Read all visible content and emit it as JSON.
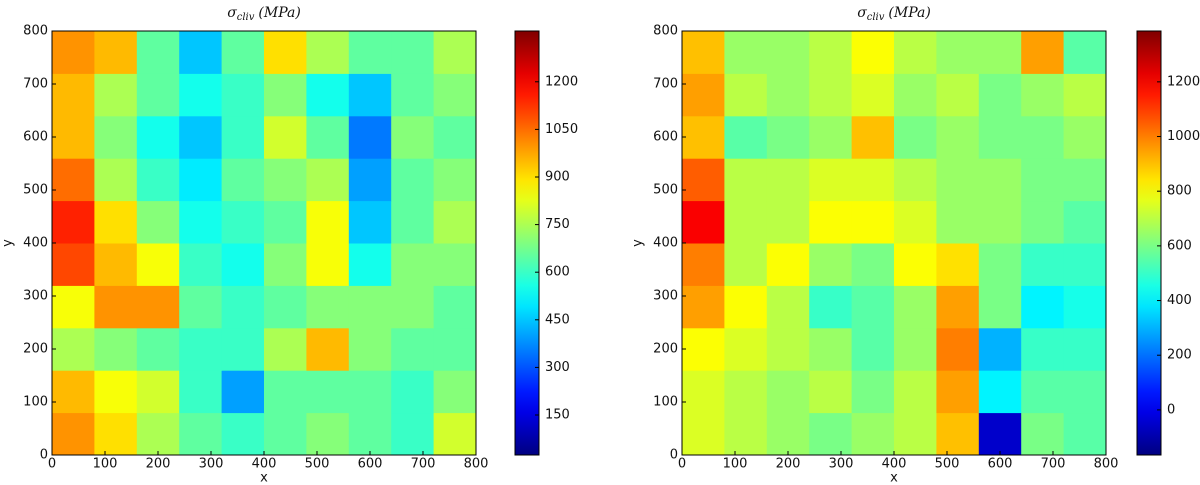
{
  "chart_data": [
    {
      "type": "heatmap",
      "title": "σ",
      "title_subscript": "cliv",
      "title_unit": "(MPa)",
      "xlabel": "x",
      "ylabel": "y",
      "colormap": "jet",
      "x": [
        40,
        120,
        200,
        280,
        360,
        440,
        520,
        600,
        680,
        760
      ],
      "y": [
        40,
        120,
        200,
        280,
        360,
        440,
        520,
        600,
        680,
        760
      ],
      "z": [
        [
          1000,
          900,
          750,
          650,
          600,
          650,
          700,
          650,
          600,
          800
        ],
        [
          950,
          850,
          800,
          600,
          400,
          650,
          650,
          650,
          600,
          700
        ],
        [
          750,
          700,
          650,
          600,
          600,
          750,
          950,
          700,
          650,
          650
        ],
        [
          850,
          1000,
          1000,
          650,
          600,
          650,
          700,
          700,
          700,
          650
        ],
        [
          1100,
          950,
          850,
          600,
          550,
          700,
          850,
          550,
          700,
          700
        ],
        [
          1150,
          900,
          700,
          550,
          600,
          650,
          850,
          450,
          650,
          750
        ],
        [
          1050,
          750,
          600,
          500,
          650,
          700,
          750,
          400,
          650,
          700
        ],
        [
          950,
          700,
          550,
          450,
          600,
          800,
          650,
          350,
          700,
          650
        ],
        [
          950,
          750,
          650,
          550,
          600,
          700,
          550,
          450,
          650,
          700
        ],
        [
          1000,
          950,
          650,
          450,
          650,
          900,
          750,
          650,
          650,
          750
        ]
      ],
      "xlim": [
        0,
        800
      ],
      "ylim": [
        0,
        800
      ],
      "xticks": [
        0,
        100,
        200,
        300,
        400,
        500,
        600,
        700,
        800
      ],
      "yticks": [
        0,
        100,
        200,
        300,
        400,
        500,
        600,
        700,
        800
      ],
      "zlim": [
        24,
        1360
      ],
      "zticks": [
        150,
        300,
        450,
        600,
        750,
        900,
        1050,
        1200
      ]
    },
    {
      "type": "heatmap",
      "title": "σ",
      "title_subscript": "cliv",
      "title_unit": "(MPa)",
      "xlabel": "x",
      "ylabel": "y",
      "colormap": "jet",
      "x": [
        40,
        120,
        200,
        280,
        360,
        440,
        520,
        600,
        680,
        760
      ],
      "y": [
        40,
        120,
        200,
        280,
        360,
        440,
        520,
        600,
        680,
        760
      ],
      "z": [
        [
          750,
          700,
          650,
          600,
          650,
          700,
          900,
          -50,
          600,
          550
        ],
        [
          750,
          700,
          650,
          700,
          600,
          700,
          950,
          400,
          550,
          550
        ],
        [
          800,
          750,
          700,
          650,
          550,
          650,
          1000,
          300,
          500,
          500
        ],
        [
          950,
          800,
          700,
          500,
          550,
          650,
          950,
          600,
          400,
          450
        ],
        [
          1000,
          700,
          800,
          650,
          600,
          800,
          850,
          600,
          500,
          500
        ],
        [
          1200,
          700,
          700,
          800,
          800,
          750,
          650,
          650,
          600,
          550
        ],
        [
          1050,
          700,
          700,
          750,
          750,
          700,
          650,
          650,
          600,
          600
        ],
        [
          900,
          550,
          600,
          650,
          900,
          600,
          650,
          600,
          600,
          650
        ],
        [
          950,
          700,
          650,
          700,
          750,
          650,
          700,
          600,
          650,
          700
        ],
        [
          900,
          650,
          650,
          700,
          800,
          700,
          650,
          650,
          950,
          550
        ]
      ],
      "xlim": [
        0,
        800
      ],
      "ylim": [
        0,
        800
      ],
      "xticks": [
        0,
        100,
        200,
        300,
        400,
        500,
        600,
        700,
        800
      ],
      "yticks": [
        0,
        100,
        200,
        300,
        400,
        500,
        600,
        700,
        800
      ],
      "zlim": [
        -165,
        1386
      ],
      "zticks": [
        0,
        200,
        400,
        600,
        800,
        1000,
        1200
      ]
    }
  ]
}
